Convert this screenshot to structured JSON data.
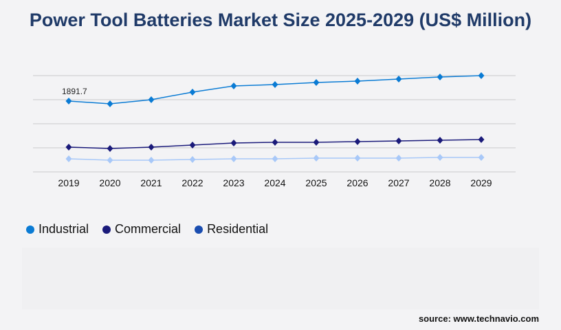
{
  "chart_data": {
    "type": "line",
    "title": "Power Tool Batteries Market Size 2025-2029 (US$ Million)",
    "categories": [
      "2019",
      "2020",
      "2021",
      "2022",
      "2023",
      "2024",
      "2025",
      "2026",
      "2027",
      "2028",
      "2029"
    ],
    "ylim": [
      0,
      2571
    ],
    "grid": true,
    "legend_placement": "bottom-left",
    "series": [
      {
        "name": "Industrial",
        "color": "#0a7bd4",
        "values": [
          1891.7,
          1819,
          1929,
          2131,
          2296,
          2333,
          2388,
          2425,
          2480,
          2535,
          2572
        ]
      },
      {
        "name": "Commercial",
        "color": "#1a1a7a",
        "values": [
          661,
          625,
          661,
          716,
          772,
          790,
          790,
          808,
          827,
          845,
          863
        ]
      },
      {
        "name": "Residential",
        "color": "#a8c8f8",
        "values": [
          349,
          312,
          312,
          331,
          349,
          349,
          367,
          367,
          367,
          386,
          386
        ]
      }
    ],
    "annotations": [
      {
        "series": "Industrial",
        "category": "2019",
        "text": "1891.7"
      }
    ],
    "legend_colors": [
      "#0a7bd4",
      "#1a1a7a",
      "#1a4db0"
    ]
  },
  "source": "source: www.technavio.com"
}
